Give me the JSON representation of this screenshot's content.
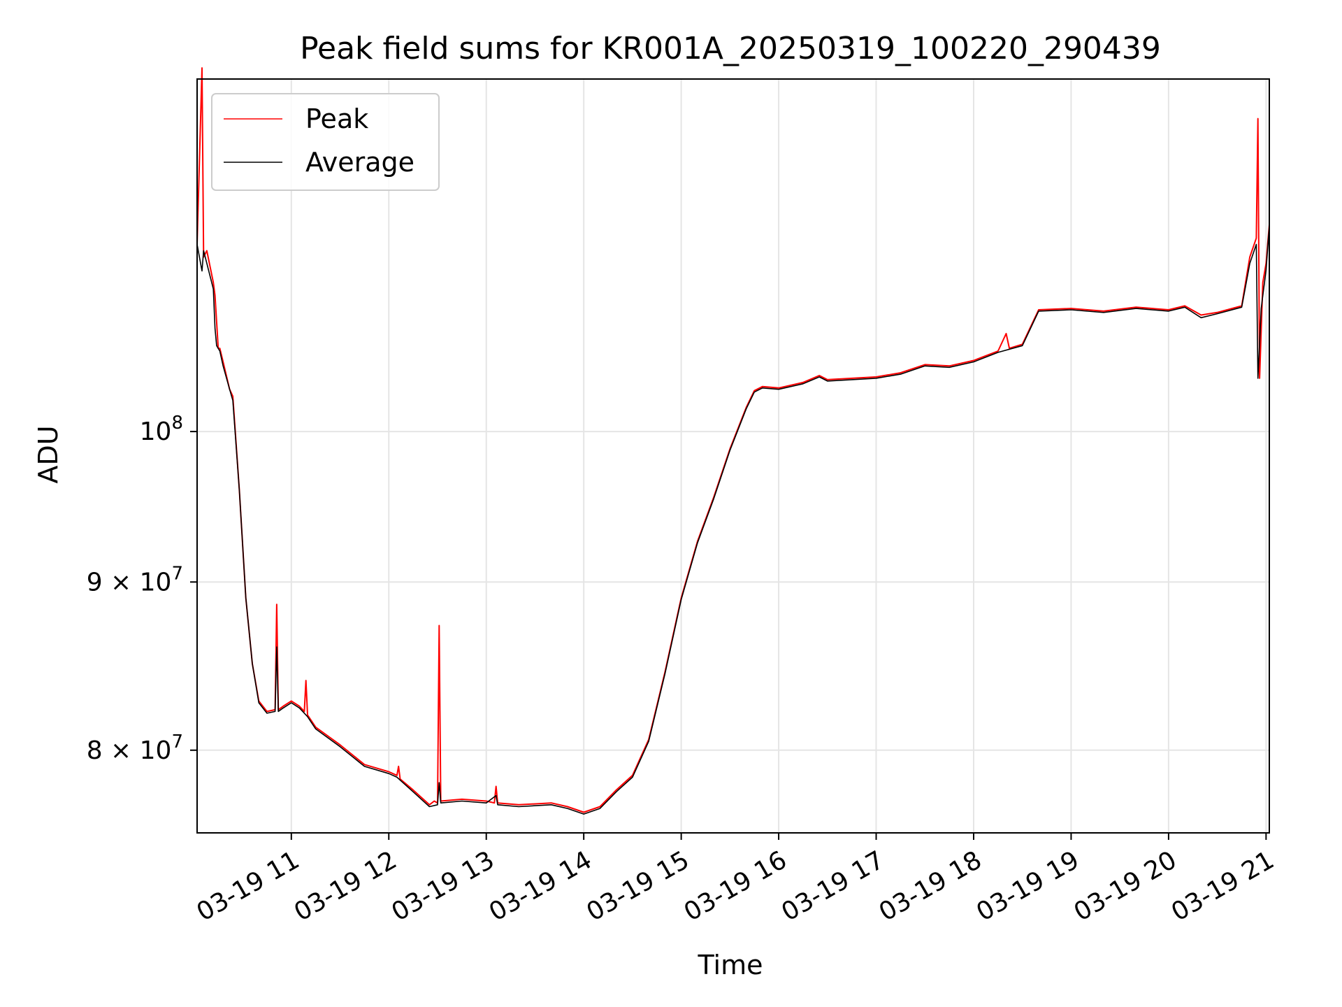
{
  "chart_data": {
    "type": "line",
    "title": "Peak field sums for KR001A_20250319_100220_290439",
    "xlabel": "Time",
    "ylabel": "ADU",
    "yscale": "log",
    "grid": true,
    "legend_position": "top-left",
    "xlim": [
      "03-19 10:02",
      "03-19 21:02"
    ],
    "ylim": [
      75500000,
      128000000
    ],
    "x_ticks": [
      {
        "value": "03-19 11:00",
        "label": "03-19 11"
      },
      {
        "value": "03-19 12:00",
        "label": "03-19 12"
      },
      {
        "value": "03-19 13:00",
        "label": "03-19 13"
      },
      {
        "value": "03-19 14:00",
        "label": "03-19 14"
      },
      {
        "value": "03-19 15:00",
        "label": "03-19 15"
      },
      {
        "value": "03-19 16:00",
        "label": "03-19 16"
      },
      {
        "value": "03-19 17:00",
        "label": "03-19 17"
      },
      {
        "value": "03-19 18:00",
        "label": "03-19 18"
      },
      {
        "value": "03-19 19:00",
        "label": "03-19 19"
      },
      {
        "value": "03-19 20:00",
        "label": "03-19 20"
      },
      {
        "value": "03-19 21:00",
        "label": "03-19 21"
      }
    ],
    "y_ticks": [
      {
        "value": 80000000,
        "mantissa": "8",
        "times": "×",
        "base": "10",
        "exp": "7"
      },
      {
        "value": 90000000,
        "mantissa": "9",
        "times": "×",
        "base": "10",
        "exp": "7"
      },
      {
        "value": 100000000,
        "mantissa": "",
        "times": "",
        "base": "10",
        "exp": "8"
      }
    ],
    "series": [
      {
        "name": "Peak",
        "color": "#ff0000",
        "points": [
          [
            "03-19 10:02",
            114000000
          ],
          [
            "03-19 10:05",
            129000000
          ],
          [
            "03-19 10:06",
            113000000
          ],
          [
            "03-19 10:08",
            113500000
          ],
          [
            "03-19 10:12",
            111000000
          ],
          [
            "03-19 10:13",
            110000000
          ],
          [
            "03-19 10:14",
            108000000
          ],
          [
            "03-19 10:15",
            106000000
          ],
          [
            "03-19 10:16",
            106000000
          ],
          [
            "03-19 10:18",
            105000000
          ],
          [
            "03-19 10:22",
            103000000
          ],
          [
            "03-19 10:24",
            102500000
          ],
          [
            "03-19 10:28",
            96000000
          ],
          [
            "03-19 10:32",
            89000000
          ],
          [
            "03-19 10:36",
            85000000
          ],
          [
            "03-19 10:40",
            82800000
          ],
          [
            "03-19 10:45",
            82200000
          ],
          [
            "03-19 10:50",
            82300000
          ],
          [
            "03-19 10:51",
            88600000
          ],
          [
            "03-19 10:52",
            82300000
          ],
          [
            "03-19 10:55",
            82500000
          ],
          [
            "03-19 11:00",
            82800000
          ],
          [
            "03-19 11:05",
            82500000
          ],
          [
            "03-19 11:08",
            82200000
          ],
          [
            "03-19 11:09",
            84000000
          ],
          [
            "03-19 11:10",
            82000000
          ],
          [
            "03-19 11:15",
            81300000
          ],
          [
            "03-19 11:30",
            80300000
          ],
          [
            "03-19 11:45",
            79200000
          ],
          [
            "03-19 12:00",
            78800000
          ],
          [
            "03-19 12:05",
            78600000
          ],
          [
            "03-19 12:06",
            79100000
          ],
          [
            "03-19 12:07",
            78400000
          ],
          [
            "03-19 12:15",
            77800000
          ],
          [
            "03-19 12:25",
            77000000
          ],
          [
            "03-19 12:28",
            77200000
          ],
          [
            "03-19 12:30",
            77100000
          ],
          [
            "03-19 12:31",
            87300000
          ],
          [
            "03-19 12:32",
            77200000
          ],
          [
            "03-19 12:45",
            77300000
          ],
          [
            "03-19 13:00",
            77200000
          ],
          [
            "03-19 13:05",
            77100000
          ],
          [
            "03-19 13:06",
            78000000
          ],
          [
            "03-19 13:07",
            77100000
          ],
          [
            "03-19 13:20",
            77000000
          ],
          [
            "03-19 13:40",
            77100000
          ],
          [
            "03-19 13:50",
            76900000
          ],
          [
            "03-19 14:00",
            76600000
          ],
          [
            "03-19 14:10",
            76900000
          ],
          [
            "03-19 14:20",
            77800000
          ],
          [
            "03-19 14:30",
            78600000
          ],
          [
            "03-19 14:40",
            80600000
          ],
          [
            "03-19 14:50",
            84500000
          ],
          [
            "03-19 15:00",
            89000000
          ],
          [
            "03-19 15:10",
            92600000
          ],
          [
            "03-19 15:20",
            95500000
          ],
          [
            "03-19 15:30",
            98800000
          ],
          [
            "03-19 15:40",
            101700000
          ],
          [
            "03-19 15:45",
            102900000
          ],
          [
            "03-19 15:50",
            103200000
          ],
          [
            "03-19 16:00",
            103100000
          ],
          [
            "03-19 16:15",
            103500000
          ],
          [
            "03-19 16:25",
            104000000
          ],
          [
            "03-19 16:30",
            103700000
          ],
          [
            "03-19 17:00",
            103900000
          ],
          [
            "03-19 17:15",
            104200000
          ],
          [
            "03-19 17:30",
            104800000
          ],
          [
            "03-19 17:45",
            104700000
          ],
          [
            "03-19 18:00",
            105100000
          ],
          [
            "03-19 18:15",
            105800000
          ],
          [
            "03-19 18:20",
            107100000
          ],
          [
            "03-19 18:22",
            106000000
          ],
          [
            "03-19 18:30",
            106300000
          ],
          [
            "03-19 18:40",
            108900000
          ],
          [
            "03-19 19:00",
            109000000
          ],
          [
            "03-19 19:20",
            108800000
          ],
          [
            "03-19 19:40",
            109100000
          ],
          [
            "03-19 20:00",
            108900000
          ],
          [
            "03-19 20:10",
            109200000
          ],
          [
            "03-19 20:20",
            108500000
          ],
          [
            "03-19 20:30",
            108700000
          ],
          [
            "03-19 20:45",
            109200000
          ],
          [
            "03-19 20:50",
            113000000
          ],
          [
            "03-19 20:54",
            114500000
          ],
          [
            "03-19 20:55",
            124500000
          ],
          [
            "03-19 20:56",
            103800000
          ],
          [
            "03-19 20:58",
            111000000
          ],
          [
            "03-19 21:00",
            112500000
          ],
          [
            "03-19 21:02",
            115600000
          ]
        ]
      },
      {
        "name": "Average",
        "color": "#000000",
        "points": [
          [
            "03-19 10:02",
            114000000
          ],
          [
            "03-19 10:05",
            111900000
          ],
          [
            "03-19 10:06",
            113500000
          ],
          [
            "03-19 10:08",
            112500000
          ],
          [
            "03-19 10:12",
            110500000
          ],
          [
            "03-19 10:13",
            107500000
          ],
          [
            "03-19 10:14",
            106200000
          ],
          [
            "03-19 10:16",
            105800000
          ],
          [
            "03-19 10:18",
            104700000
          ],
          [
            "03-19 10:22",
            103000000
          ],
          [
            "03-19 10:24",
            102200000
          ],
          [
            "03-19 10:28",
            96000000
          ],
          [
            "03-19 10:32",
            89000000
          ],
          [
            "03-19 10:36",
            85000000
          ],
          [
            "03-19 10:40",
            82700000
          ],
          [
            "03-19 10:45",
            82100000
          ],
          [
            "03-19 10:50",
            82200000
          ],
          [
            "03-19 10:51",
            86000000
          ],
          [
            "03-19 10:52",
            82200000
          ],
          [
            "03-19 10:55",
            82400000
          ],
          [
            "03-19 11:00",
            82700000
          ],
          [
            "03-19 11:05",
            82400000
          ],
          [
            "03-19 11:10",
            81900000
          ],
          [
            "03-19 11:15",
            81200000
          ],
          [
            "03-19 11:30",
            80200000
          ],
          [
            "03-19 11:45",
            79100000
          ],
          [
            "03-19 12:00",
            78700000
          ],
          [
            "03-19 12:05",
            78500000
          ],
          [
            "03-19 12:15",
            77700000
          ],
          [
            "03-19 12:25",
            76900000
          ],
          [
            "03-19 12:30",
            77000000
          ],
          [
            "03-19 12:31",
            78200000
          ],
          [
            "03-19 12:32",
            77100000
          ],
          [
            "03-19 12:45",
            77200000
          ],
          [
            "03-19 13:00",
            77100000
          ],
          [
            "03-19 13:06",
            77500000
          ],
          [
            "03-19 13:07",
            77000000
          ],
          [
            "03-19 13:20",
            76900000
          ],
          [
            "03-19 13:40",
            77000000
          ],
          [
            "03-19 13:50",
            76800000
          ],
          [
            "03-19 14:00",
            76500000
          ],
          [
            "03-19 14:10",
            76800000
          ],
          [
            "03-19 14:20",
            77700000
          ],
          [
            "03-19 14:30",
            78500000
          ],
          [
            "03-19 14:40",
            80500000
          ],
          [
            "03-19 14:50",
            84400000
          ],
          [
            "03-19 15:00",
            88900000
          ],
          [
            "03-19 15:10",
            92500000
          ],
          [
            "03-19 15:20",
            95400000
          ],
          [
            "03-19 15:30",
            98700000
          ],
          [
            "03-19 15:40",
            101600000
          ],
          [
            "03-19 15:45",
            102800000
          ],
          [
            "03-19 15:50",
            103100000
          ],
          [
            "03-19 16:00",
            103000000
          ],
          [
            "03-19 16:15",
            103400000
          ],
          [
            "03-19 16:25",
            103900000
          ],
          [
            "03-19 16:30",
            103600000
          ],
          [
            "03-19 17:00",
            103800000
          ],
          [
            "03-19 17:15",
            104100000
          ],
          [
            "03-19 17:30",
            104700000
          ],
          [
            "03-19 17:45",
            104600000
          ],
          [
            "03-19 18:00",
            105000000
          ],
          [
            "03-19 18:15",
            105700000
          ],
          [
            "03-19 18:30",
            106200000
          ],
          [
            "03-19 18:40",
            108800000
          ],
          [
            "03-19 19:00",
            108900000
          ],
          [
            "03-19 19:20",
            108700000
          ],
          [
            "03-19 19:40",
            109000000
          ],
          [
            "03-19 20:00",
            108800000
          ],
          [
            "03-19 20:10",
            109100000
          ],
          [
            "03-19 20:20",
            108300000
          ],
          [
            "03-19 20:30",
            108600000
          ],
          [
            "03-19 20:45",
            109100000
          ],
          [
            "03-19 20:50",
            112500000
          ],
          [
            "03-19 20:54",
            114000000
          ],
          [
            "03-19 20:55",
            103800000
          ],
          [
            "03-19 20:57",
            109000000
          ],
          [
            "03-19 21:00",
            112000000
          ],
          [
            "03-19 21:02",
            115500000
          ]
        ]
      }
    ]
  }
}
